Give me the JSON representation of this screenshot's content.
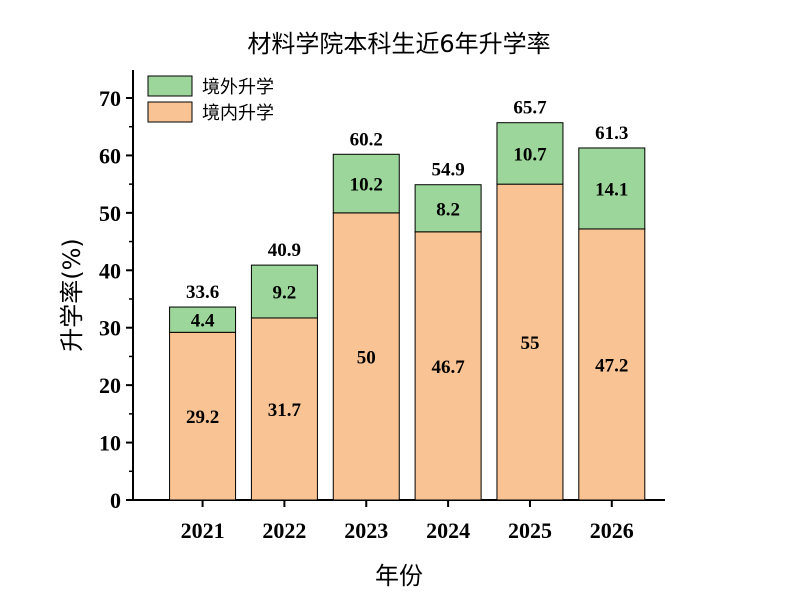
{
  "chart_data": {
    "type": "bar",
    "stacked": true,
    "title": "材料学院本科生近6年升学率",
    "xlabel": "年份",
    "ylabel": "升学率(%)",
    "ylim": [
      0,
      70
    ],
    "yticks": [
      "0",
      "10",
      "20",
      "30",
      "40",
      "50",
      "60",
      "70"
    ],
    "categories": [
      "2021",
      "2022",
      "2023",
      "2024",
      "2025",
      "2026"
    ],
    "series": [
      {
        "name": "境内升学",
        "color": "#f9c393",
        "values": [
          29.2,
          31.7,
          50,
          46.7,
          55,
          47.2
        ],
        "labels": [
          "29.2",
          "31.7",
          "50",
          "46.7",
          "55",
          "47.2"
        ]
      },
      {
        "name": "境外升学",
        "color": "#9cd69a",
        "values": [
          4.4,
          9.2,
          10.2,
          8.2,
          10.7,
          14.1
        ],
        "labels": [
          "4.4",
          "9.2",
          "10.2",
          "8.2",
          "10.7",
          "14.1"
        ]
      }
    ],
    "totals": [
      "33.6",
      "40.9",
      "60.2",
      "54.9",
      "65.7",
      "61.3"
    ],
    "legend": {
      "position": "top-left"
    },
    "grid": false
  }
}
